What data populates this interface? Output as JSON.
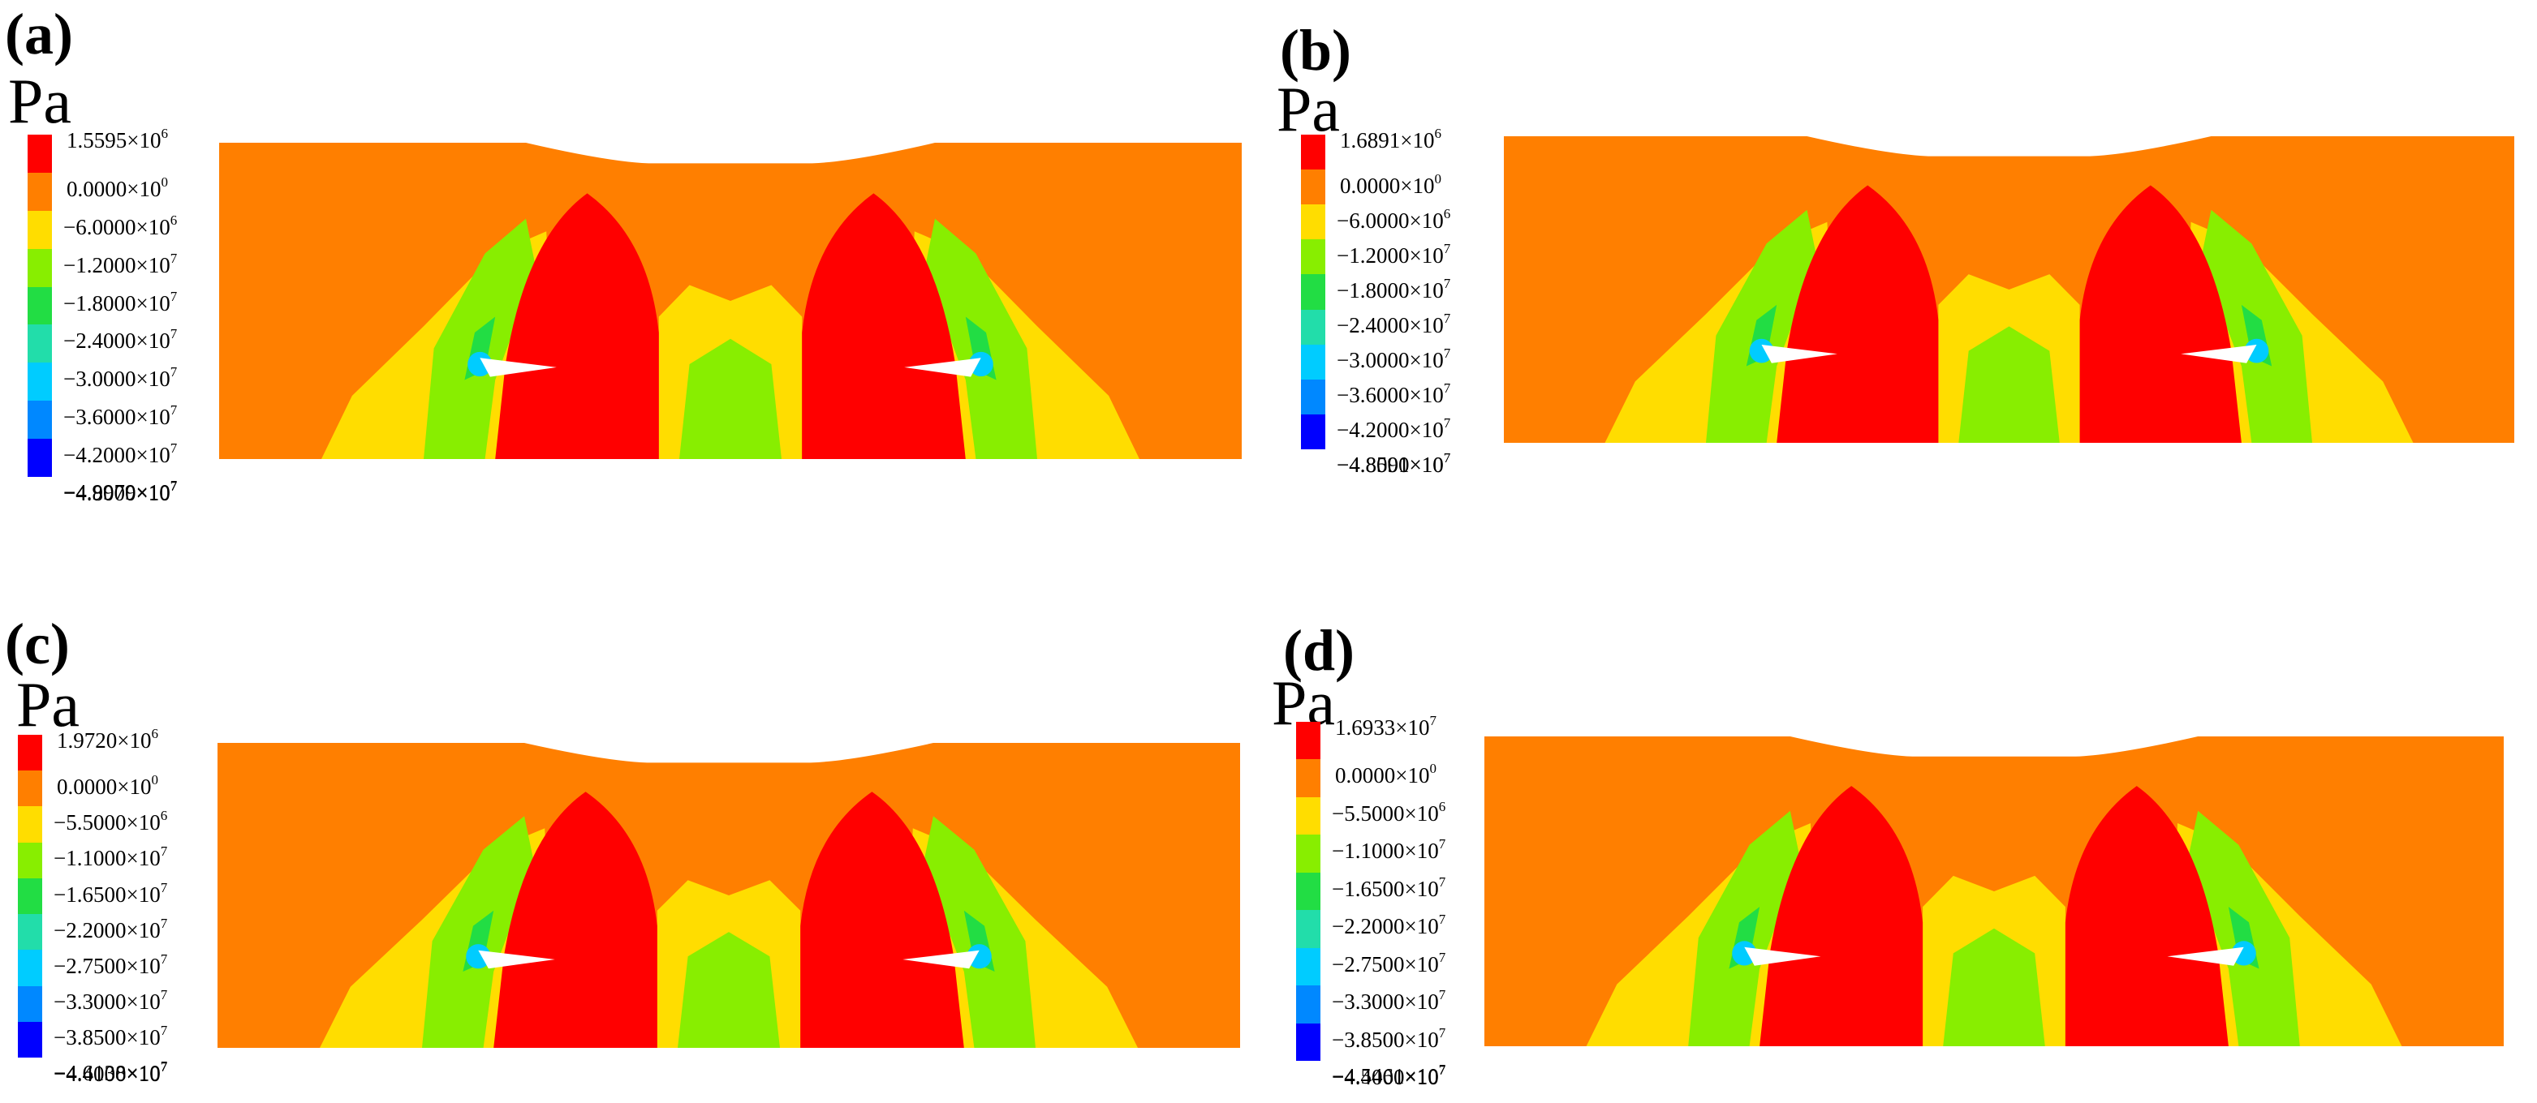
{
  "figure": {
    "unit": "Pa",
    "colors": [
      "#ff0000",
      "#ff7f00",
      "#ffdd00",
      "#88ee00",
      "#22dd44",
      "#22ddaa",
      "#00ccff",
      "#0088ff",
      "#0000ff"
    ],
    "panels": [
      {
        "label": "(a)",
        "ticks": [
          "1.5595×10^6",
          "0.0000×10^0",
          "−6.0000×10^6",
          "−1.2000×10^7",
          "−1.8000×10^7",
          "−2.4000×10^7",
          "−3.0000×10^7",
          "−3.6000×10^7",
          "−4.2000×10^7",
          "−4.8000×10^7",
          "−4.9979×10^7"
        ]
      },
      {
        "label": "(b)",
        "ticks": [
          "1.6891×10^6",
          "0.0000×10^0",
          "−6.0000×10^6",
          "−1.2000×10^7",
          "−1.8000×10^7",
          "−2.4000×10^7",
          "−3.0000×10^7",
          "−3.6000×10^7",
          "−4.2000×10^7",
          "−4.8000×10^7",
          "−4.8591×10^7"
        ]
      },
      {
        "label": "(c)",
        "ticks": [
          "1.9720×10^6",
          "0.0000×10^0",
          "−5.5000×10^6",
          "−1.1000×10^7",
          "−1.6500×10^7",
          "−2.2000×10^7",
          "−2.7500×10^7",
          "−3.3000×10^7",
          "−3.8500×10^7",
          "−4.4000×10^7",
          "−4.6138×10^7"
        ]
      },
      {
        "label": "(d)",
        "ticks": [
          "1.6933×10^7",
          "0.0000×10^0",
          "−5.5000×10^6",
          "−1.1000×10^7",
          "−1.6500×10^7",
          "−2.2000×10^7",
          "−2.7500×10^7",
          "−3.3000×10^7",
          "−3.8500×10^7",
          "−4.4000×10^7",
          "−4.5461×10^7"
        ]
      }
    ]
  }
}
